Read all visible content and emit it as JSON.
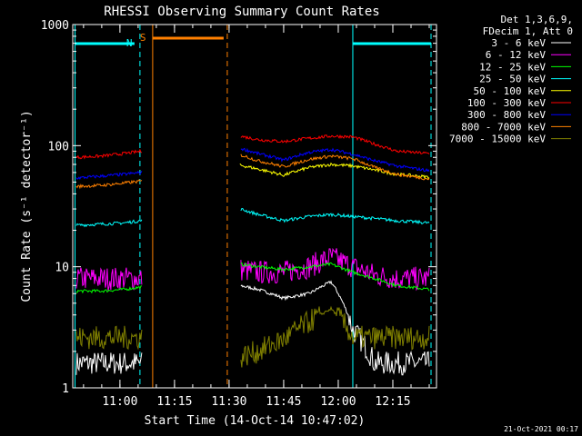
{
  "chart_data": {
    "type": "line",
    "title": "RHESSI Observing Summary Count Rates",
    "xlabel": "Start Time (14-Oct-14 10:47:02)",
    "ylabel": "Count Rate (s⁻¹ detector⁻¹)",
    "y_scale": "log",
    "ylim": [
      1,
      1000
    ],
    "y_ticks": [
      {
        "value": 1,
        "label": "1"
      },
      {
        "value": 10,
        "label": "10"
      },
      {
        "value": 100,
        "label": "100"
      },
      {
        "value": 1000,
        "label": "1000"
      }
    ],
    "xlim": [
      "10:47:02",
      "12:27:00"
    ],
    "x_ticks": [
      "11:00",
      "11:15",
      "11:30",
      "11:45",
      "12:00",
      "12:15"
    ],
    "legend_header": [
      "Det 1,3,6,9,",
      "FDecim 1, Att 0"
    ],
    "legend_position": "right",
    "timestamp": "21-Oct-2021 00:17",
    "gaps": [
      [
        "11:07:10",
        "11:32:00"
      ]
    ],
    "annotations": [
      {
        "label": "N",
        "color": "#00ffff",
        "bars": [
          [
            "10:47:40",
            "11:04:00"
          ],
          [
            "12:04:00",
            "12:25:30"
          ]
        ],
        "solid_lines": [
          "10:47:40",
          "12:04:00"
        ],
        "dashed_lines": [
          "11:05:30",
          "12:25:30"
        ]
      },
      {
        "label": "S",
        "color": "#ff8000",
        "bars": [
          [
            "11:09:00",
            "11:28:30"
          ]
        ],
        "solid_lines": [
          "11:09:00"
        ],
        "dashed_lines": [
          "11:29:30"
        ]
      }
    ],
    "series": [
      {
        "name": "3 - 6 keV",
        "color": "#ffffff",
        "x": [
          "10:48",
          "10:55",
          "11:01",
          "11:06",
          "11:33",
          "11:38",
          "11:45",
          "11:52",
          "11:58",
          "12:04",
          "12:10",
          "12:16",
          "12:25"
        ],
        "y": [
          1.6,
          1.6,
          1.6,
          1.6,
          7.0,
          6.5,
          5.5,
          6.0,
          7.5,
          3.0,
          1.6,
          1.6,
          1.6
        ]
      },
      {
        "name": "6 - 12 keV",
        "color": "#ff00ff",
        "x": [
          "10:48",
          "10:55",
          "11:01",
          "11:06",
          "11:33",
          "11:38",
          "11:45",
          "11:52",
          "11:58",
          "12:04",
          "12:10",
          "12:16",
          "12:25"
        ],
        "y": [
          8.0,
          8.0,
          8.0,
          8.0,
          9.5,
          9.0,
          9.0,
          10.0,
          12.0,
          10.0,
          8.5,
          8.0,
          8.0
        ]
      },
      {
        "name": "12 - 25 keV",
        "color": "#00ff00",
        "x": [
          "10:48",
          "10:55",
          "11:01",
          "11:06",
          "11:33",
          "11:38",
          "11:45",
          "11:52",
          "11:58",
          "12:04",
          "12:10",
          "12:16",
          "12:25"
        ],
        "y": [
          6.3,
          6.3,
          6.5,
          6.8,
          10.5,
          10.0,
          9.5,
          10.0,
          10.5,
          9.0,
          8.0,
          7.0,
          6.5
        ]
      },
      {
        "name": "25 - 50 keV",
        "color": "#00ffff",
        "x": [
          "10:48",
          "10:55",
          "11:01",
          "11:06",
          "11:33",
          "11:38",
          "11:45",
          "11:52",
          "11:58",
          "12:04",
          "12:10",
          "12:16",
          "12:25"
        ],
        "y": [
          22.0,
          22.5,
          23.0,
          24.0,
          30.0,
          27.0,
          24.0,
          26.0,
          27.0,
          26.0,
          25.0,
          24.0,
          23.0
        ]
      },
      {
        "name": "50 - 100 keV",
        "color": "#ffff00",
        "x": [
          "10:48",
          "10:55",
          "11:01",
          "11:06",
          "11:33",
          "11:38",
          "11:45",
          "11:52",
          "11:58",
          "12:04",
          "12:10",
          "12:16",
          "12:25"
        ],
        "y": [
          null,
          null,
          null,
          null,
          69.0,
          64.0,
          57.0,
          66.0,
          70.0,
          68.0,
          63.0,
          58.0,
          55.0
        ]
      },
      {
        "name": "100 - 300 keV",
        "color": "#ff0000",
        "x": [
          "10:48",
          "10:55",
          "11:01",
          "11:06",
          "11:33",
          "11:38",
          "11:45",
          "11:52",
          "11:58",
          "12:04",
          "12:10",
          "12:16",
          "12:25"
        ],
        "y": [
          80.0,
          82.0,
          86.0,
          90.0,
          120.0,
          112.0,
          108.0,
          115.0,
          120.0,
          118.0,
          103.0,
          90.0,
          86.0
        ]
      },
      {
        "name": "300 - 800 keV",
        "color": "#0000ff",
        "x": [
          "10:48",
          "10:55",
          "11:01",
          "11:06",
          "11:33",
          "11:38",
          "11:45",
          "11:52",
          "11:58",
          "12:04",
          "12:10",
          "12:16",
          "12:25"
        ],
        "y": [
          54.0,
          56.0,
          58.0,
          60.0,
          95.0,
          86.0,
          76.0,
          88.0,
          93.0,
          85.0,
          75.0,
          68.0,
          62.0
        ]
      },
      {
        "name": "800 - 7000 keV",
        "color": "#ff8000",
        "x": [
          "10:48",
          "10:55",
          "11:01",
          "11:06",
          "11:33",
          "11:38",
          "11:45",
          "11:52",
          "11:58",
          "12:04",
          "12:10",
          "12:16",
          "12:25"
        ],
        "y": [
          46.0,
          47.0,
          49.0,
          51.0,
          84.0,
          75.0,
          67.0,
          77.0,
          82.0,
          78.0,
          66.0,
          58.0,
          53.0
        ]
      },
      {
        "name": "7000 - 15000 keV",
        "color": "#808000",
        "x": [
          "10:48",
          "10:55",
          "11:01",
          "11:06",
          "11:33",
          "11:38",
          "11:45",
          "11:52",
          "11:58",
          "12:04",
          "12:10",
          "12:16",
          "12:25"
        ],
        "y": [
          2.6,
          2.6,
          2.6,
          2.6,
          1.8,
          2.0,
          2.5,
          3.5,
          4.5,
          2.6,
          2.6,
          2.6,
          2.6
        ]
      }
    ]
  }
}
